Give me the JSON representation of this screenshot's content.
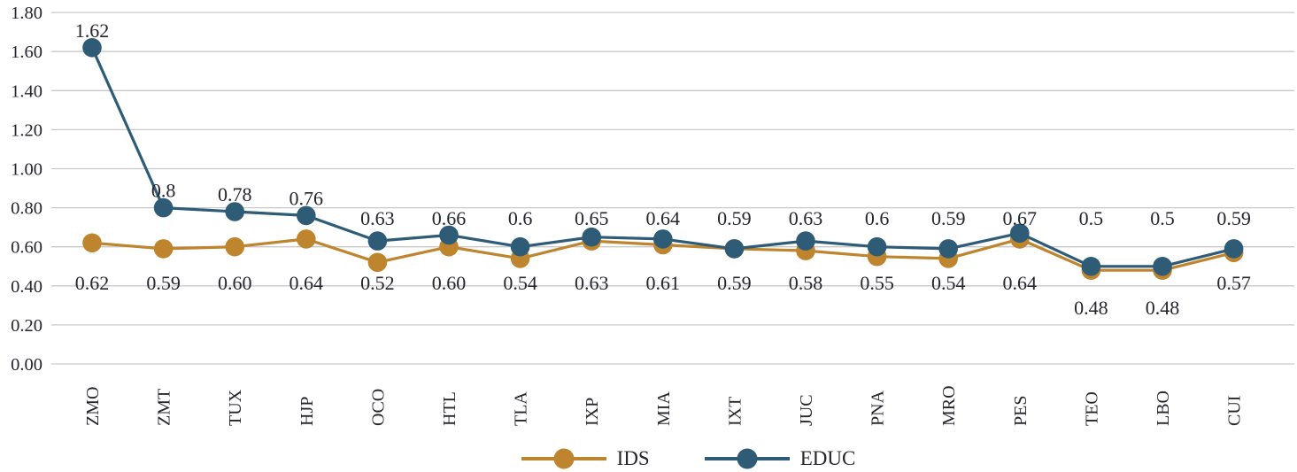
{
  "chart_data": {
    "type": "line",
    "title": "",
    "xlabel": "",
    "ylabel": "",
    "grid": true,
    "categories": [
      "ZMO",
      "ZMT",
      "TUX",
      "HJP",
      "OCO",
      "HTL",
      "TLA",
      "IXP",
      "MIA",
      "IXT",
      "JUC",
      "PNA",
      "MRO",
      "PES",
      "TEO",
      "LBO",
      "CUI"
    ],
    "series": [
      {
        "name": "IDS",
        "color": "#BF842E",
        "values": [
          0.62,
          0.59,
          0.6,
          0.64,
          0.52,
          0.6,
          0.54,
          0.63,
          0.61,
          0.59,
          0.58,
          0.55,
          0.54,
          0.64,
          0.48,
          0.48,
          0.57
        ],
        "labels": [
          "0.62",
          "0.59",
          "0.60",
          "0.64",
          "0.52",
          "0.60",
          "0.54",
          "0.63",
          "0.61",
          "0.59",
          "0.58",
          "0.55",
          "0.54",
          "0.64",
          "0.48",
          "0.48",
          "0.57"
        ]
      },
      {
        "name": "EDUC",
        "color": "#2E5B76",
        "values": [
          1.62,
          0.8,
          0.78,
          0.76,
          0.63,
          0.66,
          0.6,
          0.65,
          0.64,
          0.59,
          0.63,
          0.6,
          0.59,
          0.67,
          0.5,
          0.5,
          0.59
        ],
        "labels": [
          "1.62",
          "0.8",
          "0.78",
          "0.76",
          "0.63",
          "0.66",
          "0.6",
          "0.65",
          "0.64",
          "0.59",
          "0.63",
          "0.6",
          "0.59",
          "0.67",
          "0.5",
          "0.5",
          "0.59"
        ]
      }
    ],
    "y_axis": {
      "min": 0.0,
      "max": 1.8,
      "step": 0.2,
      "tick_labels": [
        "0.00",
        "0.20",
        "0.40",
        "0.60",
        "0.80",
        "1.00",
        "1.20",
        "1.40",
        "1.60",
        "1.80"
      ]
    },
    "legend": {
      "position": "bottom",
      "items": [
        "IDS",
        "EDUC"
      ]
    }
  },
  "colors": {
    "gridline": "#C9C9C9",
    "text": "#25252d",
    "background": "#FFFFFF"
  }
}
